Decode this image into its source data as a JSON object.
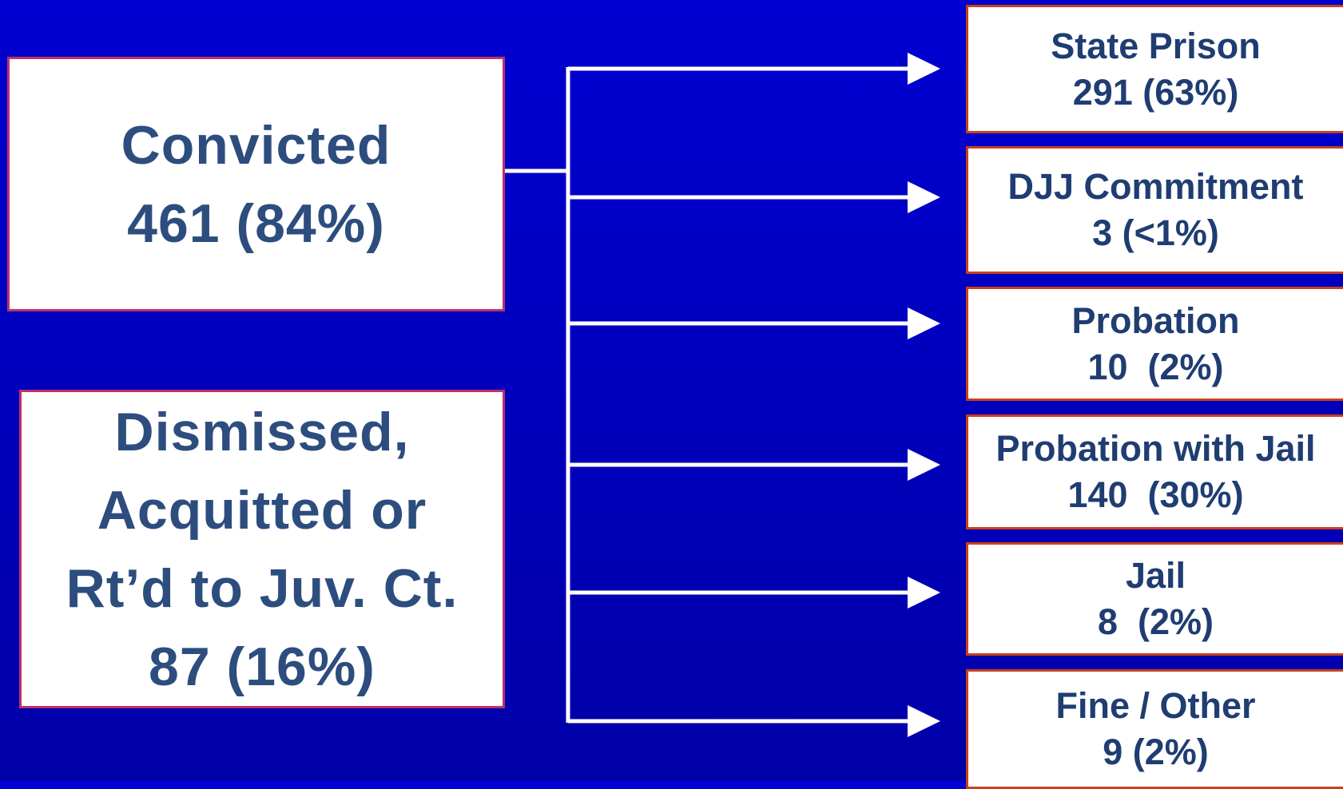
{
  "left_boxes": [
    {
      "lines": [
        "Convicted",
        "461 (84%)"
      ]
    },
    {
      "lines": [
        "Dismissed,",
        "Acquitted or",
        "Rt’d to Juv. Ct.",
        "87 (16%)"
      ]
    }
  ],
  "outcomes": [
    {
      "label": "State Prison",
      "value": "291 (63%)"
    },
    {
      "label": "DJJ Commitment",
      "value": "3 (<1%)"
    },
    {
      "label": "Probation",
      "value": "10  (2%)"
    },
    {
      "label": "Probation with Jail",
      "value": "140  (30%)"
    },
    {
      "label": "Jail",
      "value": "8  (2%)"
    },
    {
      "label": "Fine / Other",
      "value": "9 (2%)"
    }
  ]
}
